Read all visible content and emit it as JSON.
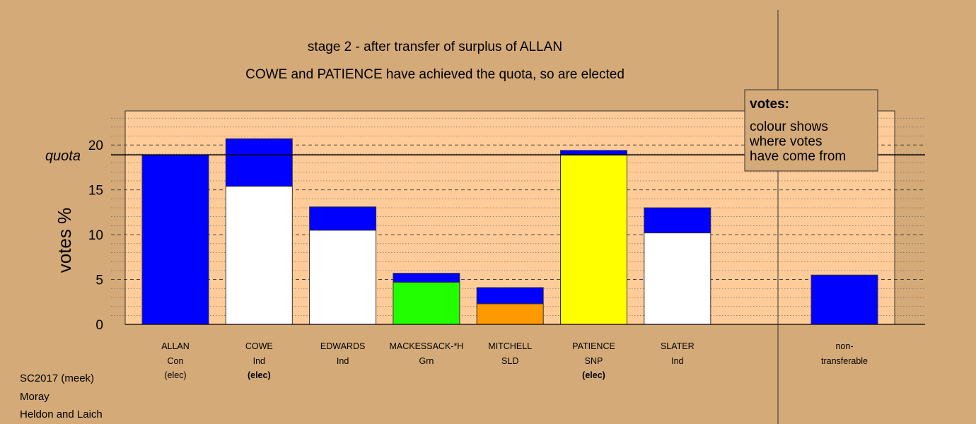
{
  "chart_data": {
    "type": "bar",
    "title": "stage 2 - after transfer of surplus of ALLAN",
    "subtitle": "COWE and PATIENCE have achieved the quota, so are elected",
    "ylabel": "votes %",
    "quota_label": "quota",
    "quota": 18.9,
    "ylim": [
      0,
      23.8
    ],
    "yticks": [
      0,
      5,
      10,
      15,
      20
    ],
    "candidates": [
      {
        "name": "ALLAN",
        "party": "Con",
        "status": "(elec)",
        "status_bold": false,
        "segments": [
          {
            "color": "#0000ff",
            "value": 18.9
          }
        ]
      },
      {
        "name": "COWE",
        "party": "Ind",
        "status": "(elec)",
        "status_bold": true,
        "segments": [
          {
            "color": "#ffffff",
            "value": 15.4
          },
          {
            "color": "#0000ff",
            "value": 5.3
          }
        ]
      },
      {
        "name": "EDWARDS",
        "party": "Ind",
        "status": "",
        "status_bold": false,
        "segments": [
          {
            "color": "#ffffff",
            "value": 10.5
          },
          {
            "color": "#0000ff",
            "value": 2.6
          }
        ]
      },
      {
        "name": "MACKESSACK-*H",
        "party": "Grn",
        "status": "",
        "status_bold": false,
        "segments": [
          {
            "color": "#22ff00",
            "value": 4.7
          },
          {
            "color": "#0000ff",
            "value": 1.0
          }
        ]
      },
      {
        "name": "MITCHELL",
        "party": "SLD",
        "status": "",
        "status_bold": false,
        "segments": [
          {
            "color": "#ff9900",
            "value": 2.3
          },
          {
            "color": "#0000ff",
            "value": 1.8
          }
        ]
      },
      {
        "name": "PATIENCE",
        "party": "SNP",
        "status": "(elec)",
        "status_bold": true,
        "segments": [
          {
            "color": "#ffff00",
            "value": 18.9
          },
          {
            "color": "#0000ff",
            "value": 0.5
          }
        ]
      },
      {
        "name": "SLATER",
        "party": "Ind",
        "status": "",
        "status_bold": false,
        "segments": [
          {
            "color": "#ffffff",
            "value": 10.2
          },
          {
            "color": "#0000ff",
            "value": 2.8
          }
        ]
      }
    ],
    "nontransferable": {
      "line1": "non-",
      "line2": "transferable",
      "segments": [
        {
          "color": "#0000ff",
          "value": 5.5
        }
      ]
    },
    "legend": {
      "title": "votes:",
      "lines": [
        "colour shows",
        "where votes",
        "have come from"
      ],
      "position": "top-right"
    }
  },
  "footer": {
    "line1": "SC2017 (meek)",
    "line2": "Moray",
    "line3": "Heldon and Laich"
  },
  "colors": {
    "background": "#d4aa78",
    "plot_bg": "#ffcc99",
    "legend_bg": "#d4aa78"
  }
}
